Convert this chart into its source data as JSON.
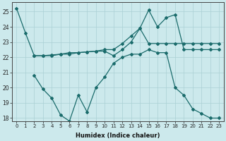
{
  "xlabel": "Humidex (Indice chaleur)",
  "bg_color": "#cce9ec",
  "grid_color": "#aad0d4",
  "line_color": "#1a6b6b",
  "xlim": [
    -0.5,
    23.5
  ],
  "ylim": [
    17.8,
    25.6
  ],
  "yticks": [
    18,
    19,
    20,
    21,
    22,
    23,
    24,
    25
  ],
  "xticks": [
    0,
    1,
    2,
    3,
    4,
    5,
    6,
    7,
    8,
    9,
    10,
    11,
    12,
    13,
    14,
    15,
    16,
    17,
    18,
    19,
    20,
    21,
    22,
    23
  ],
  "line1_x": [
    0,
    1,
    2,
    3,
    4,
    5,
    6,
    7,
    8,
    9,
    10,
    11,
    12,
    13,
    14,
    15,
    16,
    17,
    18,
    19,
    20,
    21,
    22,
    23
  ],
  "line1_y": [
    25.2,
    23.6,
    22.1,
    22.1,
    22.15,
    22.2,
    22.3,
    22.3,
    22.35,
    22.4,
    22.5,
    22.5,
    22.9,
    23.4,
    23.9,
    22.9,
    22.9,
    22.9,
    22.9,
    22.9,
    22.9,
    22.9,
    22.9,
    22.9
  ],
  "line2_x": [
    2,
    3,
    4,
    5,
    6,
    7,
    8,
    9,
    10,
    11,
    12,
    13,
    14,
    15,
    16,
    17,
    18,
    19,
    20,
    21,
    22,
    23
  ],
  "line2_y": [
    22.1,
    22.1,
    22.1,
    22.2,
    22.2,
    22.3,
    22.35,
    22.4,
    22.4,
    22.1,
    22.5,
    23.0,
    23.9,
    25.1,
    24.0,
    24.6,
    24.8,
    22.5,
    22.5,
    22.5,
    22.5,
    22.5
  ],
  "line3_x": [
    2,
    3,
    4,
    5,
    6,
    7,
    8,
    9,
    10,
    11,
    12,
    13,
    14,
    15,
    16,
    17,
    18,
    19,
    20,
    21,
    22,
    23
  ],
  "line3_y": [
    20.8,
    19.9,
    19.3,
    18.2,
    17.8,
    19.5,
    18.4,
    20.0,
    20.7,
    21.6,
    22.0,
    22.2,
    22.2,
    22.5,
    22.3,
    22.3,
    20.0,
    19.5,
    18.6,
    18.3,
    18.0,
    18.0
  ]
}
